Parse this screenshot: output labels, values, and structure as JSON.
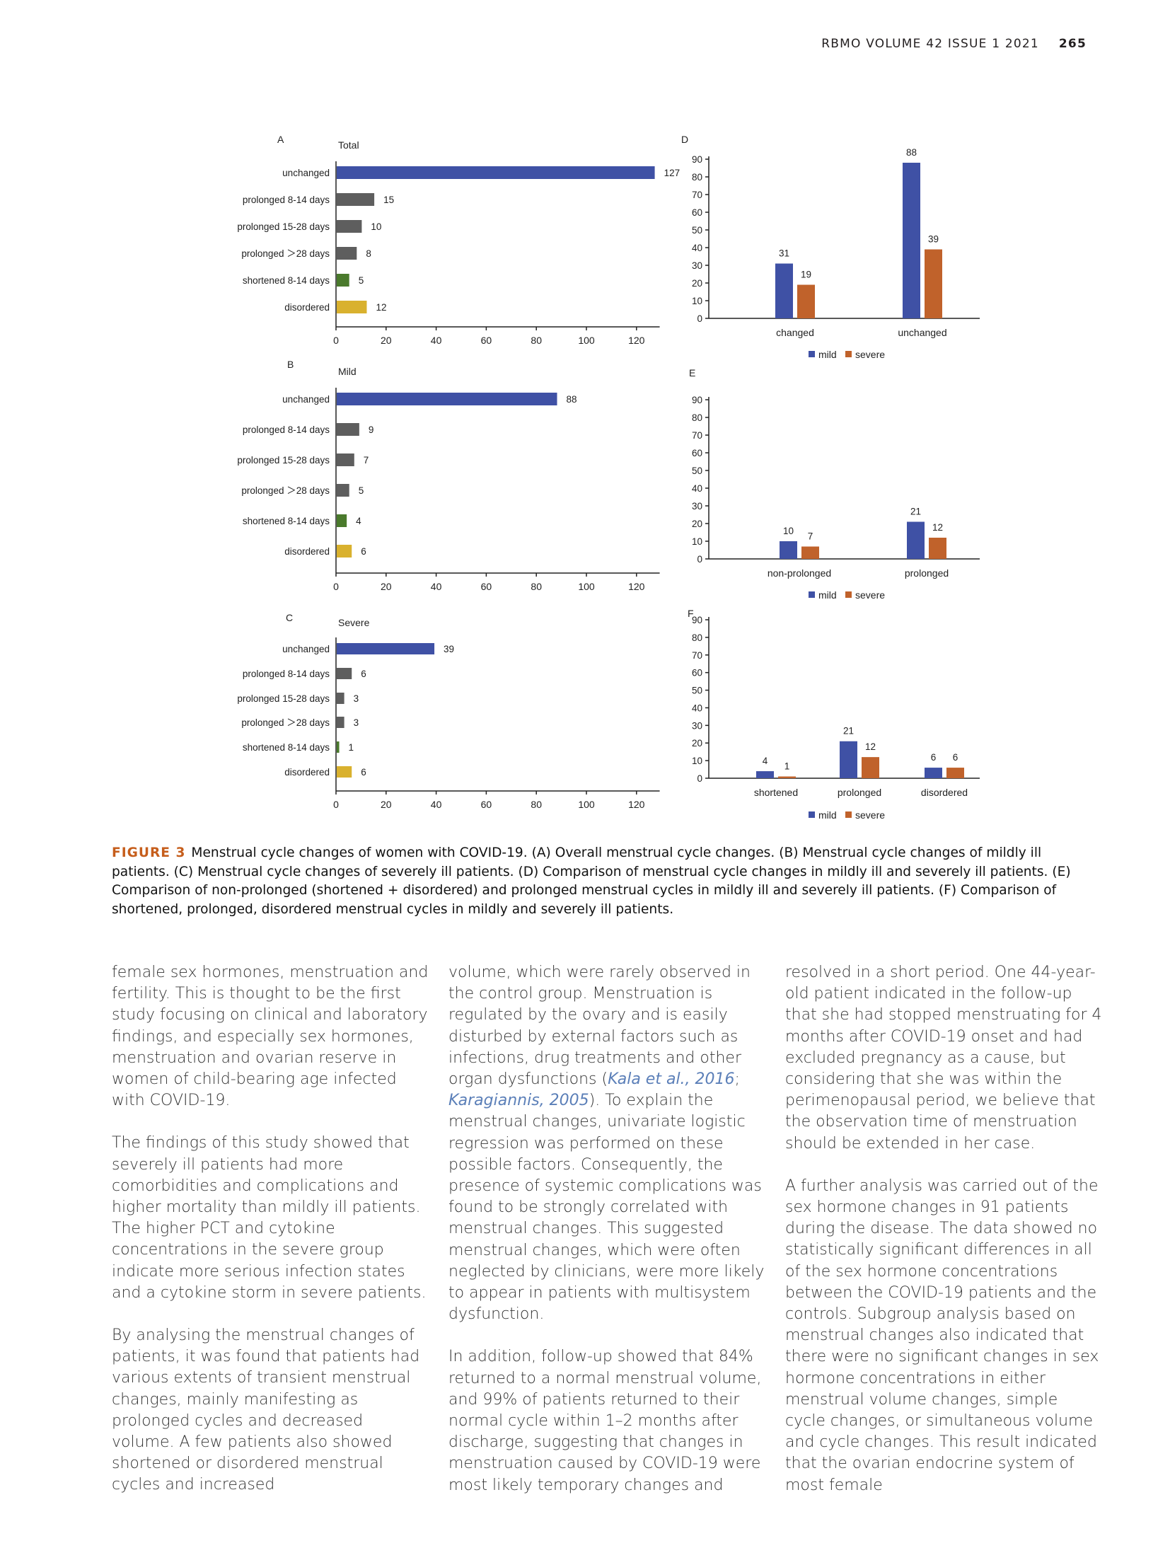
{
  "header": {
    "journal": "RBMO  VOLUME 42  ISSUE 1  2021",
    "page": "265"
  },
  "colors": {
    "mild": "#3f51a5",
    "severe": "#c0622b",
    "unchanged": "#3f51a5",
    "prolonged": "#5e5e5e",
    "shortened": "#4a7a2c",
    "disordered": "#d9b12e",
    "figure_label": "#c65e1c",
    "link": "#5b7fb8"
  },
  "chart_data": [
    {
      "panel": "A",
      "type": "bar",
      "orientation": "horizontal",
      "title": "Total",
      "categories": [
        "unchanged",
        "prolonged 8-14 days",
        "prolonged 15-28 days",
        "prolonged ＞28 days",
        "shortened 8-14 days",
        "disordered"
      ],
      "values": [
        127,
        15,
        10,
        8,
        5,
        12
      ],
      "xlim": [
        0,
        127
      ],
      "xticks": [
        0,
        20,
        40,
        60,
        80,
        100,
        120
      ]
    },
    {
      "panel": "B",
      "type": "bar",
      "orientation": "horizontal",
      "title": "Mild",
      "categories": [
        "unchanged",
        "prolonged 8-14 days",
        "prolonged 15-28 days",
        "prolonged ＞28 days",
        "shortened 8-14 days",
        "disordered"
      ],
      "values": [
        88,
        9,
        7,
        5,
        4,
        6
      ],
      "xlim": [
        0,
        127
      ],
      "xticks": [
        0,
        20,
        40,
        60,
        80,
        100,
        120
      ]
    },
    {
      "panel": "C",
      "type": "bar",
      "orientation": "horizontal",
      "title": "Severe",
      "categories": [
        "unchanged",
        "prolonged 8-14 days",
        "prolonged 15-28 days",
        "prolonged ＞28 days",
        "shortened 8-14 days",
        "disordered"
      ],
      "values": [
        39,
        6,
        3,
        3,
        1,
        6
      ],
      "xlim": [
        0,
        127
      ],
      "xticks": [
        0,
        20,
        40,
        60,
        80,
        100,
        120
      ]
    },
    {
      "panel": "D",
      "type": "bar",
      "categories": [
        "changed",
        "unchanged"
      ],
      "series": [
        {
          "name": "mild",
          "values": [
            31,
            88
          ]
        },
        {
          "name": "severe",
          "values": [
            19,
            39
          ]
        }
      ],
      "ylim": [
        0,
        90
      ],
      "yticks": [
        0,
        10,
        20,
        30,
        40,
        50,
        60,
        70,
        80,
        90
      ],
      "legend": "bottom"
    },
    {
      "panel": "E",
      "type": "bar",
      "categories": [
        "non-prolonged",
        "prolonged"
      ],
      "series": [
        {
          "name": "mild",
          "values": [
            10,
            21
          ]
        },
        {
          "name": "severe",
          "values": [
            7,
            12
          ]
        }
      ],
      "ylim": [
        0,
        90
      ],
      "yticks": [
        0,
        10,
        20,
        30,
        40,
        50,
        60,
        70,
        80,
        90
      ],
      "legend": "bottom"
    },
    {
      "panel": "F",
      "type": "bar",
      "categories": [
        "shortened",
        "prolonged",
        "disordered"
      ],
      "series": [
        {
          "name": "mild",
          "values": [
            4,
            21,
            6
          ]
        },
        {
          "name": "severe",
          "values": [
            1,
            12,
            6
          ]
        }
      ],
      "ylim": [
        0,
        90
      ],
      "yticks": [
        0,
        10,
        20,
        30,
        40,
        50,
        60,
        70,
        80,
        90
      ],
      "legend": "bottom"
    }
  ],
  "caption": {
    "label": "FIGURE 3",
    "text": "Menstrual cycle changes of women with COVID-19. (A) Overall menstrual cycle changes. (B) Menstrual cycle changes of mildly ill patients. (C) Menstrual cycle changes of severely ill patients. (D) Comparison of menstrual cycle changes in mildly ill and severely ill patients. (E) Comparison of non-prolonged (shortened + disordered) and prolonged menstrual cycles in mildly ill and severely ill patients. (F) Comparison of shortened, prolonged, disordered menstrual cycles in mildly and severely ill patients."
  },
  "body": {
    "col1": [
      "female sex hormones, menstruation and fertility. This is thought to be the first study focusing on clinical and laboratory findings, and especially sex hormones, menstruation and ovarian reserve in women of child-bearing age infected with COVID-19.",
      "The findings of this study showed that severely ill patients had more comorbidities and complications and higher mortality than mildly ill patients. The higher PCT and cytokine concentrations in the severe group indicate more serious infection states and a cytokine storm in severe patients.",
      "By analysing the menstrual changes of patients, it was found that patients had various extents of transient menstrual changes, mainly manifesting as prolonged cycles and decreased volume. A few patients also showed shortened or disordered menstrual cycles and increased"
    ],
    "col2_p1_a": "volume, which were rarely observed in the control group. Menstruation is regulated by the ovary and is easily disturbed by external factors such as infections, drug treatments and other organ dysfunctions (",
    "cite1": "Kala et al., 2016",
    "col2_p1_sep": "; ",
    "cite2": "Karagiannis, 2005",
    "col2_p1_b": "). To explain the menstrual changes, univariate logistic regression was performed on these possible factors. Consequently, the presence of systemic complications was found to be strongly correlated with menstrual changes. This suggested menstrual changes, which were often neglected by clinicians, were more likely to appear in patients with multisystem dysfunction.",
    "col2_p2": "In addition, follow-up showed that 84% returned to a normal menstrual volume, and 99% of patients returned to their normal cycle within 1–2 months after discharge, suggesting that changes in menstruation caused by COVID-19 were most likely temporary changes and",
    "col3": [
      "resolved in a short period. One 44-year-old patient indicated in the follow-up that she had stopped menstruating for 4 months after COVID-19 onset and had excluded pregnancy as a cause, but considering that she was within the perimenopausal period, we believe that the observation time of menstruation should be extended in her case.",
      "A further analysis was carried out of the sex hormone changes in 91 patients during the disease. The data showed no statistically significant differences in all of the sex hormone concentrations between the COVID-19 patients and the controls. Subgroup analysis based on menstrual changes also indicated that there were no significant changes in sex hormone concentrations in either menstrual volume changes, simple cycle changes, or simultaneous volume and cycle changes. This result indicated that the ovarian endocrine system of most female"
    ]
  }
}
